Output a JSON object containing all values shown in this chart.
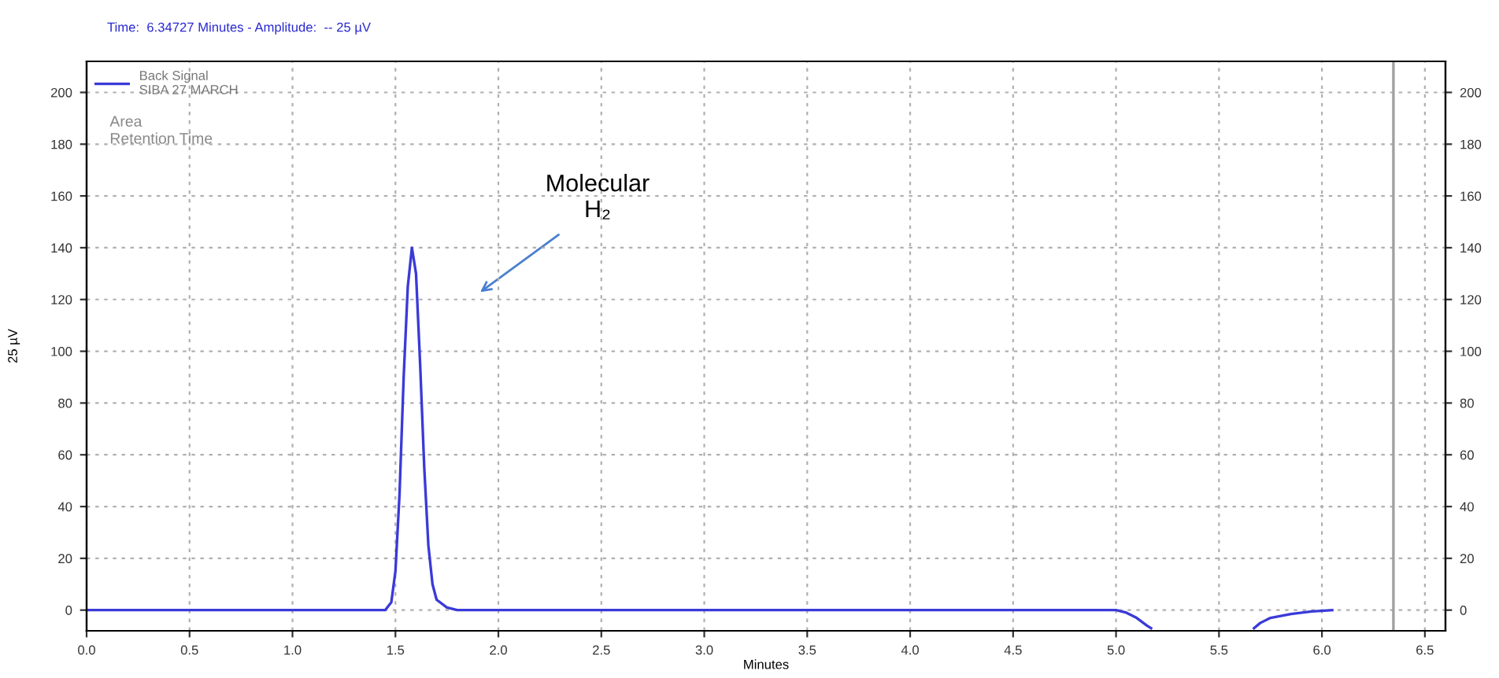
{
  "chart_data": {
    "type": "line",
    "title": "Time:  6.34727 Minutes - Amplitude:  -- 25 µV",
    "xlabel": "Minutes",
    "ylabel": "25 µV",
    "x": [
      0.0,
      1.0,
      1.4,
      1.45,
      1.48,
      1.5,
      1.52,
      1.54,
      1.56,
      1.58,
      1.6,
      1.62,
      1.64,
      1.66,
      1.68,
      1.7,
      1.75,
      1.8,
      3.0,
      4.9,
      5.0,
      5.05,
      5.1,
      5.15,
      5.17,
      5.4,
      5.67,
      5.7,
      5.75,
      5.85,
      5.95,
      6.05
    ],
    "series": [
      {
        "name": "Back Signal\nSIBA 27 MARCH",
        "color": "#3a3ad8",
        "values": [
          0,
          0,
          0,
          0,
          3,
          15,
          45,
          90,
          125,
          140,
          130,
          95,
          55,
          25,
          10,
          4,
          1,
          0,
          0,
          0,
          0,
          -1,
          -3,
          -6,
          -7,
          null,
          -7,
          -5,
          -3,
          -1.5,
          -0.5,
          0
        ]
      }
    ],
    "xlim": [
      0,
      6.6
    ],
    "ylim": [
      -8,
      212
    ],
    "y2lim": [
      -8,
      212
    ],
    "xticks": [
      {
        "value": 0,
        "label": "0.0"
      },
      {
        "value": 0.5,
        "label": "0.5"
      },
      {
        "value": 1,
        "label": "1.0"
      },
      {
        "value": 1.5,
        "label": "1.5"
      },
      {
        "value": 2,
        "label": "2.0"
      },
      {
        "value": 2.5,
        "label": "2.5"
      },
      {
        "value": 3,
        "label": "3.0"
      },
      {
        "value": 3.5,
        "label": "3.5"
      },
      {
        "value": 4,
        "label": "4.0"
      },
      {
        "value": 4.5,
        "label": "4.5"
      },
      {
        "value": 5,
        "label": "5.0"
      },
      {
        "value": 5.5,
        "label": "5.5"
      },
      {
        "value": 6,
        "label": "6.0"
      },
      {
        "value": 6.5,
        "label": "6.5"
      }
    ],
    "yticks": [
      0,
      20,
      40,
      60,
      80,
      100,
      120,
      140,
      160,
      180,
      200
    ],
    "y2ticks": [
      0,
      20,
      40,
      60,
      80,
      100,
      120,
      140,
      160,
      180,
      200
    ],
    "ref_lines": [
      {
        "axis": "x",
        "value": 6.34727,
        "label": null,
        "color": "#a0a0a0"
      }
    ],
    "annotations": [
      "Molecular\nH₂",
      "Area",
      "Retention Time"
    ],
    "grid": true,
    "legend": "top left",
    "marker": "none",
    "line_style": "solid"
  }
}
